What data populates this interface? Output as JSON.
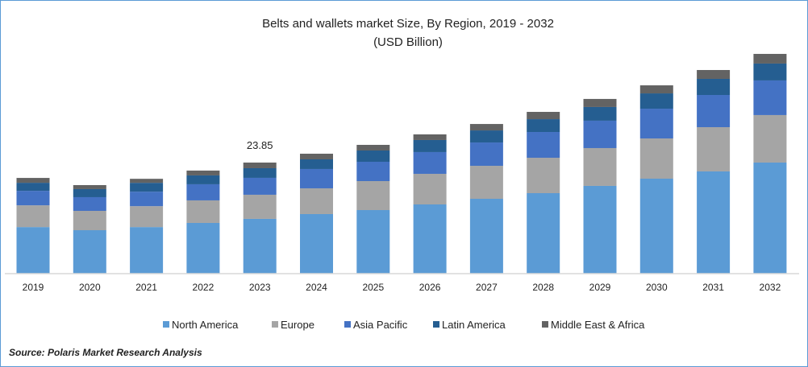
{
  "chart_data": {
    "type": "bar",
    "stacked": true,
    "title": "Belts and wallets market Size, By Region, 2019 - 2032",
    "subtitle": "(USD Billion)",
    "xlabel": "",
    "ylabel": "",
    "grid": false,
    "legend_position": "bottom",
    "categories": [
      "2019",
      "2020",
      "2021",
      "2022",
      "2023",
      "2024",
      "2025",
      "2026",
      "2027",
      "2028",
      "2029",
      "2030",
      "2031",
      "2032"
    ],
    "series": [
      {
        "name": "North America",
        "color": "#5b9bd5",
        "values": [
          10.0,
          9.33,
          10.0,
          10.89,
          11.76,
          12.79,
          13.65,
          14.86,
          16.07,
          17.28,
          18.84,
          20.39,
          21.95,
          23.85
        ]
      },
      {
        "name": "Europe",
        "color": "#a5a5a5",
        "values": [
          4.67,
          4.15,
          4.49,
          4.84,
          5.18,
          5.53,
          6.22,
          6.57,
          7.08,
          7.6,
          8.12,
          8.64,
          9.5,
          10.2
        ]
      },
      {
        "name": "Asia Pacific",
        "color": "#4472c4",
        "values": [
          3.11,
          2.94,
          3.11,
          3.46,
          3.63,
          4.15,
          4.15,
          4.67,
          5.01,
          5.53,
          5.88,
          6.39,
          6.91,
          7.43
        ]
      },
      {
        "name": "Latin America",
        "color": "#255e91",
        "values": [
          1.73,
          1.73,
          1.9,
          1.9,
          2.07,
          2.07,
          2.42,
          2.59,
          2.59,
          2.76,
          2.94,
          3.28,
          3.46,
          3.63
        ]
      },
      {
        "name": "Middle East & Africa",
        "color": "#636363",
        "values": [
          1.04,
          0.86,
          0.86,
          1.04,
          1.21,
          1.21,
          1.21,
          1.21,
          1.38,
          1.56,
          1.73,
          1.73,
          1.9,
          2.07
        ]
      }
    ],
    "annotations": [
      {
        "category": "2023",
        "text": "23.85"
      }
    ],
    "source": "Source: Polaris  Market Research Analysis"
  }
}
